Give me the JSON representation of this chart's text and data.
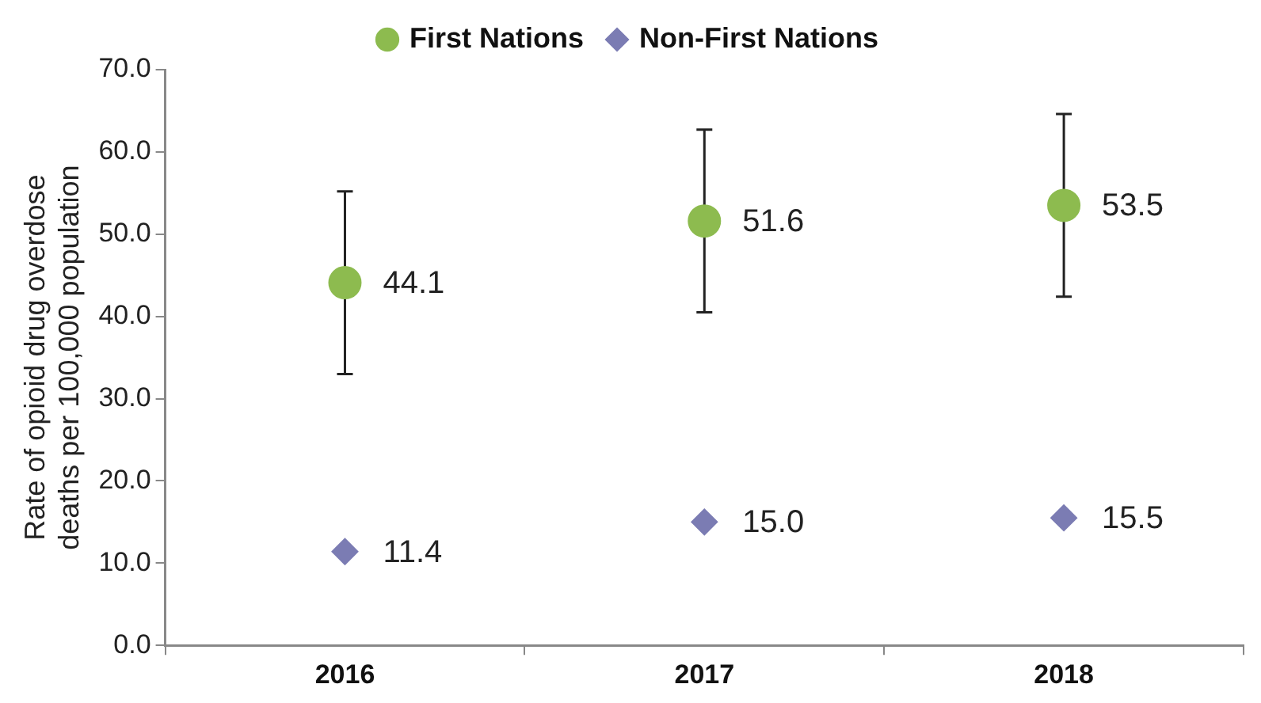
{
  "chart_data": {
    "type": "scatter",
    "ylabel": "Rate of opioid drug overdose deaths per 100,000 population",
    "categories": [
      "2016",
      "2017",
      "2018"
    ],
    "series": [
      {
        "name": "First Nations",
        "color": "#8dbb4f",
        "marker": "circle",
        "values": [
          44.1,
          51.6,
          53.5
        ],
        "errors": [
          11.1,
          11.1,
          11.1
        ],
        "value_labels": [
          "44.1",
          "51.6",
          "53.5"
        ]
      },
      {
        "name": "Non-First Nations",
        "color": "#7b7cb3",
        "marker": "diamond",
        "values": [
          11.4,
          15.0,
          15.5
        ],
        "value_labels": [
          "11.4",
          "15.0",
          "15.5"
        ]
      }
    ],
    "ylim": [
      0,
      70
    ],
    "yticks": [
      {
        "value": 0,
        "label": "0.0"
      },
      {
        "value": 10,
        "label": "10.0"
      },
      {
        "value": 20,
        "label": "20.0"
      },
      {
        "value": 30,
        "label": "30.0"
      },
      {
        "value": 40,
        "label": "40.0"
      },
      {
        "value": 50,
        "label": "50.0"
      },
      {
        "value": 60,
        "label": "60.0"
      },
      {
        "value": 70,
        "label": "70.0"
      }
    ],
    "grid": false,
    "legend": "top"
  }
}
